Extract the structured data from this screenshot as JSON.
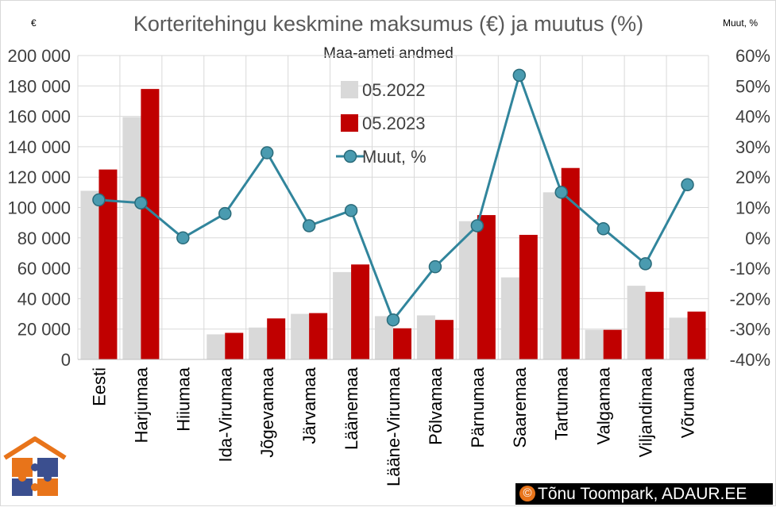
{
  "chart_data": {
    "type": "bar",
    "title": "Korteritehingu keskmine maksumus (€) ja muutus (%)",
    "subtitle": "Maa-ameti andmed",
    "ylabel_left": "€",
    "ylabel_right": "Muut, %",
    "ylim_left": [
      0,
      200000
    ],
    "ylim_right": [
      -40,
      60
    ],
    "grid": true,
    "legend_position": "top-center",
    "categories": [
      "Eesti",
      "Harjumaa",
      "Hiiumaa",
      "Ida-Virumaa",
      "Jõgevamaa",
      "Järvamaa",
      "Läänemaa",
      "Lääne-Virumaa",
      "Põlvamaa",
      "Pärnumaa",
      "Saaremaa",
      "Tartumaa",
      "Valgamaa",
      "Viljandimaa",
      "Võrumaa"
    ],
    "series": [
      {
        "name": "05.2022",
        "kind": "bar",
        "axis": "left",
        "color": "#d9d9d9",
        "values": [
          111000,
          159500,
          0,
          16500,
          21000,
          30000,
          57500,
          28500,
          29000,
          91000,
          54000,
          110000,
          19500,
          48500,
          27500
        ]
      },
      {
        "name": "05.2023",
        "kind": "bar",
        "axis": "left",
        "color": "#c00000",
        "values": [
          125000,
          178000,
          0,
          17500,
          27000,
          30500,
          62500,
          20500,
          26000,
          95000,
          82000,
          126000,
          19500,
          44500,
          31500
        ]
      },
      {
        "name": "Muut, %",
        "kind": "line",
        "axis": "right",
        "color": "#31859c",
        "marker_color": "#4a9bb0",
        "values": [
          12.5,
          11.5,
          0,
          8,
          28,
          4,
          9,
          -27,
          -9.5,
          4,
          53.5,
          15,
          3,
          -8.5,
          17.5
        ]
      }
    ],
    "left_ticks": [
      "0",
      "20 000",
      "40 000",
      "60 000",
      "80 000",
      "100 000",
      "120 000",
      "140 000",
      "160 000",
      "180 000",
      "200 000"
    ],
    "right_ticks": [
      "-40%",
      "-30%",
      "-20%",
      "-10%",
      "0%",
      "10%",
      "20%",
      "30%",
      "40%",
      "50%",
      "60%"
    ]
  },
  "copyright": {
    "symbol": "©",
    "text": "Tõnu Toompark, ADAUR.EE"
  },
  "logo": {
    "icon": "house-puzzle-logo",
    "colors": {
      "roof": "#e8741a",
      "orange": "#e8741a",
      "blue": "#3b4f8f"
    }
  }
}
